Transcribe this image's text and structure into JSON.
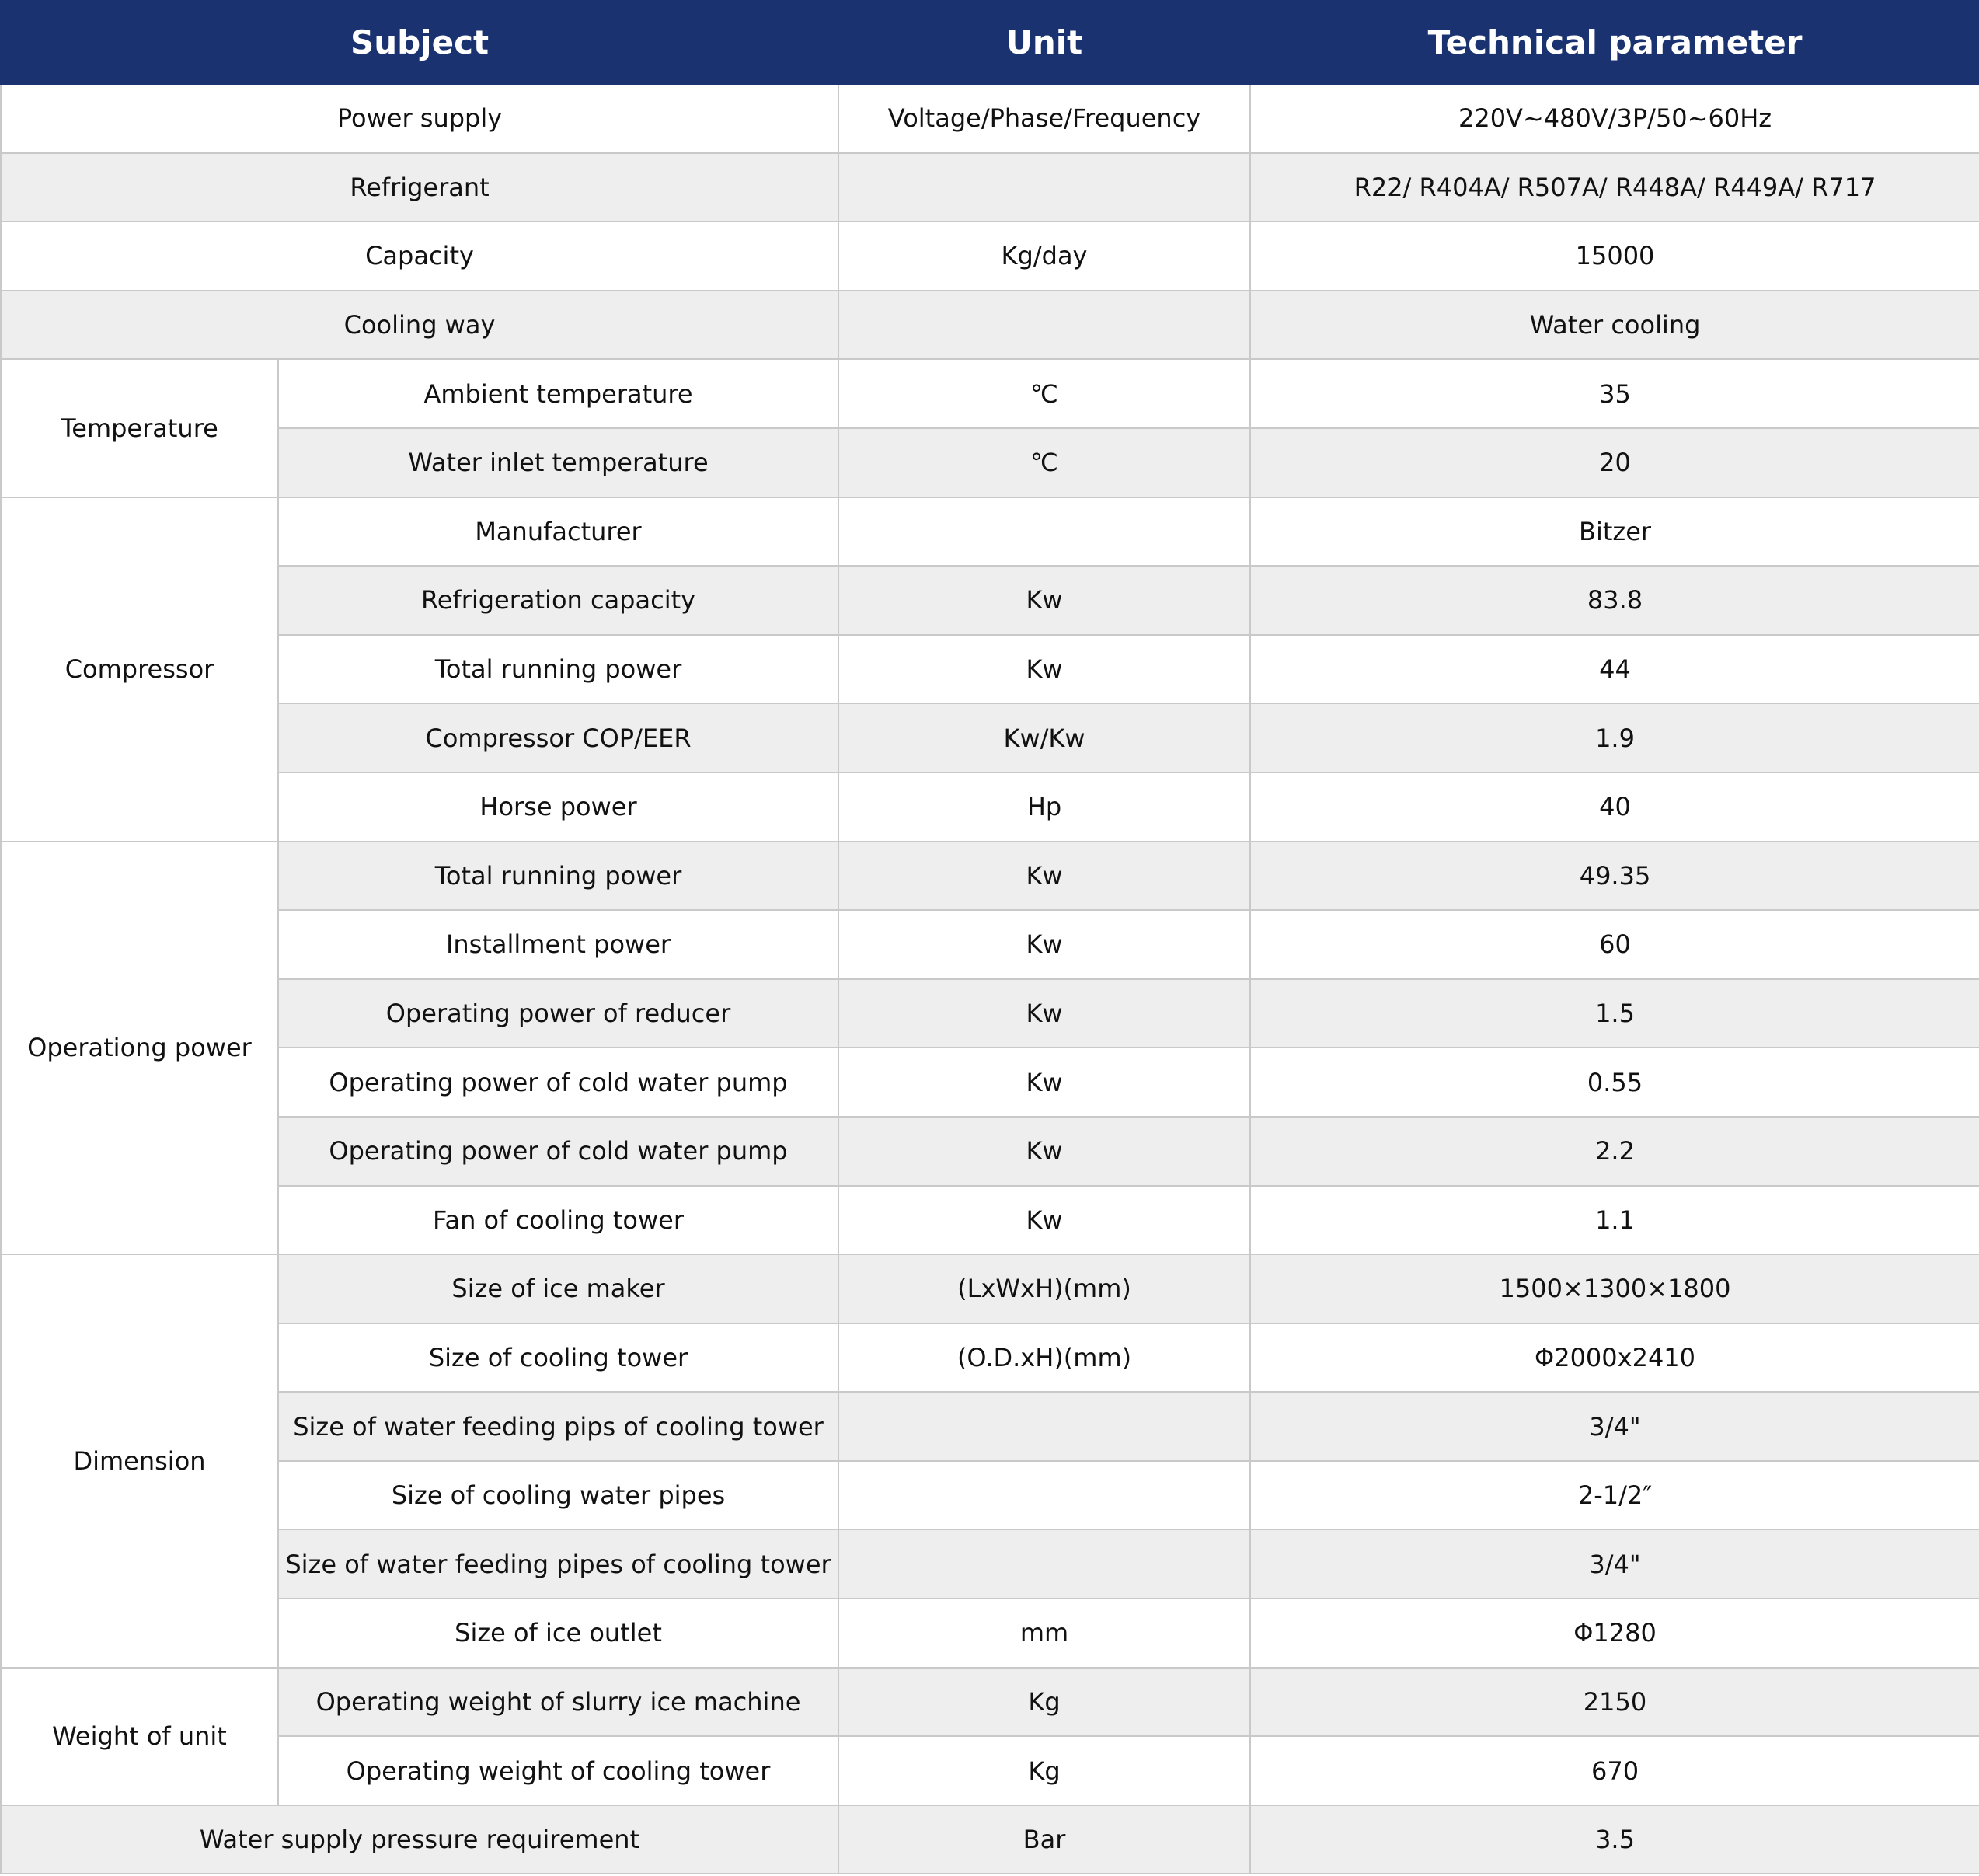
{
  "table": {
    "header": {
      "subject": "Subject",
      "unit": "Unit",
      "parameter": "Technical parameter"
    },
    "rows": [
      {
        "subject": "Power supply",
        "unit": "Voltage/Phase/Frequency",
        "value": "220V~480V/3P/50~60Hz"
      },
      {
        "subject": "Refrigerant",
        "value": "R22/ R404A/ R507A/ R448A/ R449A/ R717"
      },
      {
        "subject": "Capacity",
        "unit": "Kg/day",
        "value": "15000"
      },
      {
        "subject": "Cooling way",
        "value": "Water cooling"
      },
      {
        "group": "Temperature",
        "items": [
          {
            "subject": "Ambient temperature",
            "unit": "℃",
            "value": "35"
          },
          {
            "subject": "Water inlet temperature",
            "unit": "℃",
            "value": "20"
          }
        ]
      },
      {
        "group": "Compressor",
        "items": [
          {
            "subject": "Manufacturer",
            "value": "Bitzer"
          },
          {
            "subject": "Refrigeration capacity",
            "unit": "Kw",
            "value": "83.8"
          },
          {
            "subject": "Total running power",
            "unit": "Kw",
            "value": "44"
          },
          {
            "subject": "Compressor COP/EER",
            "unit": "Kw/Kw",
            "value": "1.9"
          },
          {
            "subject": "Horse power",
            "unit": "Hp",
            "value": "40"
          }
        ]
      },
      {
        "group": "Operationg power",
        "items": [
          {
            "subject": "Total running power",
            "unit": "Kw",
            "value": "49.35"
          },
          {
            "subject": "Installment power",
            "unit": "Kw",
            "value": "60"
          },
          {
            "subject": "Operating power of reducer",
            "unit": "Kw",
            "value": "1.5"
          },
          {
            "subject": "Operating power of cold water pump",
            "unit": "Kw",
            "value": "0.55"
          },
          {
            "subject": "Operating power of cold water pump",
            "unit": "Kw",
            "value": "2.2"
          },
          {
            "subject": "Fan of cooling tower",
            "unit": "Kw",
            "value": "1.1"
          }
        ]
      },
      {
        "group": "Dimension",
        "items": [
          {
            "subject": "Size of ice maker",
            "unit": "(LxWxH)(mm)",
            "value": "1500×1300×1800"
          },
          {
            "subject": "Size of cooling tower",
            "unit": "(O.D.xH)(mm)",
            "value": "Φ2000x2410"
          },
          {
            "subject": "Size of water feeding pips of cooling tower",
            "value": "3/4\""
          },
          {
            "subject": "Size of cooling water pipes",
            "value": "2-1/2″"
          },
          {
            "subject": "Size of water feeding pipes of cooling tower",
            "value": "3/4\""
          },
          {
            "subject": "Size of ice outlet",
            "unit": "mm",
            "value": "Φ1280"
          }
        ]
      },
      {
        "group": "Weight of unit",
        "items": [
          {
            "subject": "Operating weight of slurry ice machine",
            "unit": "Kg",
            "value": "2150"
          },
          {
            "subject": "Operating weight of cooling tower",
            "unit": "Kg",
            "value": "670"
          }
        ]
      },
      {
        "subject": "Water supply pressure requirement",
        "unit": "Bar",
        "value": "3.5"
      }
    ]
  }
}
